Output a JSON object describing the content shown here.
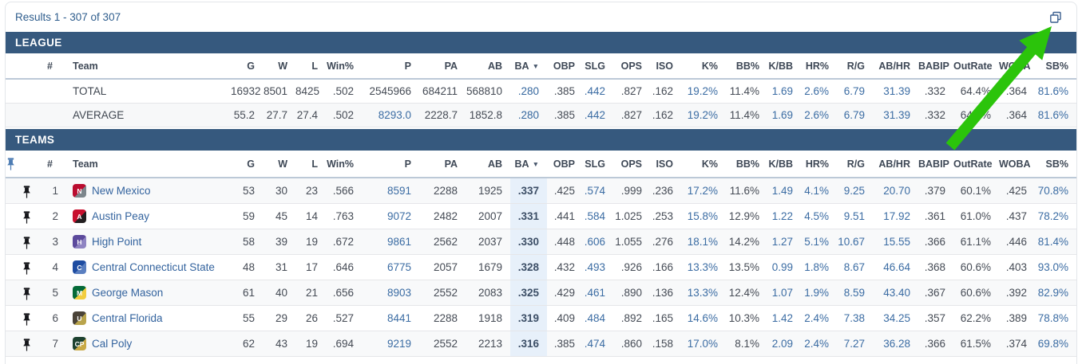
{
  "page": {
    "results_text": "Results 1 - 307 of 307"
  },
  "header_labels": {
    "pin": "",
    "rank": "#",
    "team": "Team"
  },
  "columns": [
    {
      "id": "g",
      "label": "G",
      "link": false
    },
    {
      "id": "w",
      "label": "W",
      "link": false
    },
    {
      "id": "l",
      "label": "L",
      "link": false
    },
    {
      "id": "winpct",
      "label": "Win%",
      "link": false
    },
    {
      "id": "p",
      "label": "P",
      "link": true
    },
    {
      "id": "pa",
      "label": "PA",
      "link": false
    },
    {
      "id": "ab",
      "label": "AB",
      "link": false
    },
    {
      "id": "ba",
      "label": "BA",
      "link": false,
      "sorted": true
    },
    {
      "id": "obp",
      "label": "OBP",
      "link": false
    },
    {
      "id": "slg",
      "label": "SLG",
      "link": true
    },
    {
      "id": "ops",
      "label": "OPS",
      "link": false
    },
    {
      "id": "iso",
      "label": "ISO",
      "link": false
    },
    {
      "id": "kpct",
      "label": "K%",
      "link": true
    },
    {
      "id": "bbpct",
      "label": "BB%",
      "link": false
    },
    {
      "id": "kbb",
      "label": "K/BB",
      "link": true
    },
    {
      "id": "hrpct",
      "label": "HR%",
      "link": true
    },
    {
      "id": "rg",
      "label": "R/G",
      "link": true
    },
    {
      "id": "abhr",
      "label": "AB/HR",
      "link": true
    },
    {
      "id": "babip",
      "label": "BABIP",
      "link": false
    },
    {
      "id": "outrate",
      "label": "OutRate",
      "link": false
    },
    {
      "id": "woba",
      "label": "WOBA",
      "link": false
    },
    {
      "id": "sbpct",
      "label": "SB%",
      "link": true
    }
  ],
  "league": {
    "title": "LEAGUE",
    "rows": [
      {
        "name": "TOTAL",
        "stats": {
          "g": "16932",
          "w": "8501",
          "l": "8425",
          "winpct": ".502",
          "p": "2545966",
          "pa": "684211",
          "ab": "568810",
          "ba": ".280",
          "obp": ".385",
          "slg": ".442",
          "ops": ".827",
          "iso": ".162",
          "kpct": "19.2%",
          "bbpct": "11.4%",
          "kbb": "1.69",
          "hrpct": "2.6%",
          "rg": "6.79",
          "abhr": "31.39",
          "babip": ".332",
          "outrate": "64.4%",
          "woba": ".364",
          "sbpct": "81.6%"
        },
        "link_overrides": {
          "p": false
        }
      },
      {
        "name": "AVERAGE",
        "stats": {
          "g": "55.2",
          "w": "27.7",
          "l": "27.4",
          "winpct": ".502",
          "p": "8293.0",
          "pa": "2228.7",
          "ab": "1852.8",
          "ba": ".280",
          "obp": ".385",
          "slg": ".442",
          "ops": ".827",
          "iso": ".162",
          "kpct": "19.2%",
          "bbpct": "11.4%",
          "kbb": "1.69",
          "hrpct": "2.6%",
          "rg": "6.79",
          "abhr": "31.39",
          "babip": ".332",
          "outrate": "64.4%",
          "woba": ".364",
          "sbpct": "81.6%"
        },
        "link_overrides": {}
      }
    ]
  },
  "teams": {
    "title": "TEAMS",
    "rows": [
      {
        "rank": "1",
        "name": "New Mexico",
        "logo": {
          "c1": "#ba0c2f",
          "c2": "#7d868c",
          "initial": "N"
        },
        "stats": {
          "g": "53",
          "w": "30",
          "l": "23",
          "winpct": ".566",
          "p": "8591",
          "pa": "2288",
          "ab": "1925",
          "ba": ".337",
          "obp": ".425",
          "slg": ".574",
          "ops": ".999",
          "iso": ".236",
          "kpct": "17.2%",
          "bbpct": "11.6%",
          "kbb": "1.49",
          "hrpct": "4.1%",
          "rg": "9.25",
          "abhr": "20.70",
          "babip": ".379",
          "outrate": "60.1%",
          "woba": ".425",
          "sbpct": "70.8%"
        }
      },
      {
        "rank": "2",
        "name": "Austin Peay",
        "logo": {
          "c1": "#c8102e",
          "c2": "#231f20",
          "initial": "A"
        },
        "stats": {
          "g": "59",
          "w": "45",
          "l": "14",
          "winpct": ".763",
          "p": "9072",
          "pa": "2482",
          "ab": "2007",
          "ba": ".331",
          "obp": ".441",
          "slg": ".584",
          "ops": "1.025",
          "iso": ".253",
          "kpct": "15.8%",
          "bbpct": "12.9%",
          "kbb": "1.22",
          "hrpct": "4.5%",
          "rg": "9.51",
          "abhr": "17.92",
          "babip": ".361",
          "outrate": "61.0%",
          "woba": ".437",
          "sbpct": "78.2%"
        }
      },
      {
        "rank": "3",
        "name": "High Point",
        "logo": {
          "c1": "#5c4a9c",
          "c2": "#8f84c2",
          "initial": "H"
        },
        "stats": {
          "g": "58",
          "w": "39",
          "l": "19",
          "winpct": ".672",
          "p": "9861",
          "pa": "2562",
          "ab": "2037",
          "ba": ".330",
          "obp": ".448",
          "slg": ".606",
          "ops": "1.055",
          "iso": ".276",
          "kpct": "18.1%",
          "bbpct": "14.2%",
          "kbb": "1.27",
          "hrpct": "5.1%",
          "rg": "10.67",
          "abhr": "15.55",
          "babip": ".366",
          "outrate": "61.1%",
          "woba": ".446",
          "sbpct": "81.4%"
        }
      },
      {
        "rank": "4",
        "name": "Central Connecticut State",
        "logo": {
          "c1": "#1e4ca1",
          "c2": "#5a7fc0",
          "initial": "C"
        },
        "stats": {
          "g": "48",
          "w": "31",
          "l": "17",
          "winpct": ".646",
          "p": "6775",
          "pa": "2057",
          "ab": "1679",
          "ba": ".328",
          "obp": ".432",
          "slg": ".493",
          "ops": ".926",
          "iso": ".166",
          "kpct": "13.3%",
          "bbpct": "13.5%",
          "kbb": "0.99",
          "hrpct": "1.8%",
          "rg": "8.67",
          "abhr": "46.64",
          "babip": ".368",
          "outrate": "60.6%",
          "woba": ".403",
          "sbpct": "93.0%"
        }
      },
      {
        "rank": "5",
        "name": "George Mason",
        "logo": {
          "c1": "#046a38",
          "c2": "#f2cd3f",
          "initial": "M"
        },
        "stats": {
          "g": "61",
          "w": "40",
          "l": "21",
          "winpct": ".656",
          "p": "8903",
          "pa": "2552",
          "ab": "2083",
          "ba": ".325",
          "obp": ".429",
          "slg": ".461",
          "ops": ".890",
          "iso": ".136",
          "kpct": "13.3%",
          "bbpct": "12.4%",
          "kbb": "1.07",
          "hrpct": "1.9%",
          "rg": "8.59",
          "abhr": "43.40",
          "babip": ".367",
          "outrate": "60.6%",
          "woba": ".392",
          "sbpct": "82.9%"
        }
      },
      {
        "rank": "6",
        "name": "Central Florida",
        "logo": {
          "c1": "#4a4338",
          "c2": "#b9a44c",
          "initial": "U"
        },
        "stats": {
          "g": "55",
          "w": "29",
          "l": "26",
          "winpct": ".527",
          "p": "8441",
          "pa": "2288",
          "ab": "1918",
          "ba": ".319",
          "obp": ".409",
          "slg": ".484",
          "ops": ".892",
          "iso": ".165",
          "kpct": "14.6%",
          "bbpct": "10.3%",
          "kbb": "1.42",
          "hrpct": "2.4%",
          "rg": "7.38",
          "abhr": "34.25",
          "babip": ".357",
          "outrate": "62.2%",
          "woba": ".389",
          "sbpct": "78.8%"
        }
      },
      {
        "rank": "7",
        "name": "Cal Poly",
        "logo": {
          "c1": "#1d4230",
          "c2": "#c9aa46",
          "initial": "CP"
        },
        "stats": {
          "g": "62",
          "w": "43",
          "l": "19",
          "winpct": ".694",
          "p": "9219",
          "pa": "2552",
          "ab": "2213",
          "ba": ".316",
          "obp": ".385",
          "slg": ".474",
          "ops": ".860",
          "iso": ".158",
          "kpct": "17.0%",
          "bbpct": "8.1%",
          "kbb": "2.09",
          "hrpct": "2.4%",
          "rg": "7.27",
          "abhr": "36.28",
          "babip": ".366",
          "outrate": "61.5%",
          "woba": ".374",
          "sbpct": "69.8%"
        }
      }
    ]
  },
  "colors": {
    "bar_bg": "#36597e",
    "link": "#3b6ca3",
    "ba_highlight": "#e7f0fa",
    "annotation_green": "#2bc40b",
    "pin_row": "#15161a",
    "pin_header": "#4d7cb3",
    "copy_icon": "#3a5f8f"
  }
}
